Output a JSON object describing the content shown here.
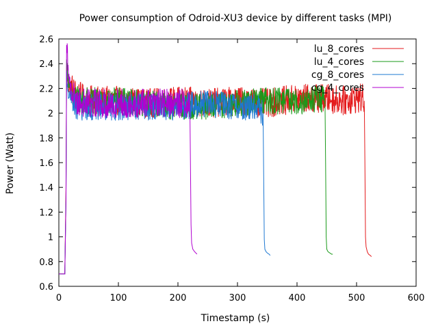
{
  "chart_data": {
    "type": "line",
    "title": "Power consumption of Odroid-XU3 device by different tasks (MPI)",
    "xlabel": "Timestamp (s)",
    "ylabel": "Power (Watt)",
    "xlim": [
      0,
      600
    ],
    "ylim": [
      0.6,
      2.6
    ],
    "xticks": [
      "0",
      "100",
      "200",
      "300",
      "400",
      "500",
      "600"
    ],
    "yticks": [
      "0.6",
      "0.8",
      "1",
      "1.2",
      "1.4",
      "1.6",
      "1.8",
      "2",
      "2.2",
      "2.4",
      "2.6"
    ],
    "grid": false,
    "legend_position": "top-right",
    "series": [
      {
        "name": "lu_8_cores",
        "color": "#e41a1c",
        "x": [
          0,
          5,
          10,
          12,
          13,
          14,
          15,
          17,
          20,
          25,
          30,
          40,
          60,
          100,
          150,
          200,
          250,
          300,
          350,
          400,
          450,
          480,
          500,
          510,
          513,
          514,
          515,
          516,
          518,
          520,
          523,
          525
        ],
        "y": [
          0.7,
          0.7,
          0.7,
          1.4,
          2.35,
          2.3,
          2.25,
          2.2,
          2.22,
          2.18,
          2.15,
          2.12,
          2.1,
          2.1,
          2.08,
          2.1,
          2.08,
          2.1,
          2.08,
          2.12,
          2.12,
          2.1,
          2.12,
          2.12,
          2.1,
          1.6,
          1.0,
          0.92,
          0.88,
          0.86,
          0.85,
          0.84
        ],
        "noise": 0.12
      },
      {
        "name": "lu_4_cores",
        "color": "#1a9a1a",
        "x": [
          0,
          5,
          10,
          12,
          13,
          14,
          15,
          17,
          20,
          25,
          30,
          50,
          100,
          150,
          200,
          250,
          300,
          350,
          400,
          420,
          440,
          447,
          448,
          449,
          450,
          452,
          455,
          458,
          460
        ],
        "y": [
          0.7,
          0.7,
          0.7,
          1.3,
          2.4,
          2.35,
          2.3,
          2.22,
          2.2,
          2.15,
          2.12,
          2.1,
          2.1,
          2.08,
          2.05,
          2.05,
          2.08,
          2.1,
          2.1,
          2.1,
          2.12,
          2.1,
          1.6,
          1.0,
          0.9,
          0.88,
          0.87,
          0.86,
          0.86
        ],
        "noise": 0.11
      },
      {
        "name": "cg_8_cores",
        "color": "#1e78d2",
        "x": [
          0,
          5,
          10,
          12,
          13,
          14,
          15,
          17,
          20,
          25,
          30,
          50,
          100,
          150,
          200,
          250,
          300,
          330,
          340,
          343,
          344,
          345,
          346,
          348,
          350,
          353,
          355
        ],
        "y": [
          0.7,
          0.7,
          0.7,
          1.3,
          2.3,
          2.25,
          2.2,
          2.15,
          2.12,
          2.08,
          2.05,
          2.05,
          2.05,
          2.05,
          2.05,
          2.08,
          2.05,
          2.05,
          2.02,
          2.0,
          1.5,
          0.98,
          0.9,
          0.88,
          0.87,
          0.86,
          0.85
        ],
        "noise": 0.11
      },
      {
        "name": "cg_4_cores",
        "color": "#b000d0",
        "x": [
          0,
          5,
          10,
          12,
          13,
          14,
          15,
          17,
          20,
          25,
          30,
          50,
          100,
          150,
          200,
          215,
          220,
          221,
          222,
          223,
          225,
          228,
          232
        ],
        "y": [
          0.7,
          0.7,
          0.7,
          1.3,
          2.5,
          2.58,
          2.4,
          2.28,
          2.2,
          2.15,
          2.1,
          2.08,
          2.08,
          2.08,
          2.08,
          2.08,
          2.08,
          1.6,
          1.1,
          0.95,
          0.9,
          0.88,
          0.86
        ],
        "noise": 0.12
      }
    ]
  }
}
